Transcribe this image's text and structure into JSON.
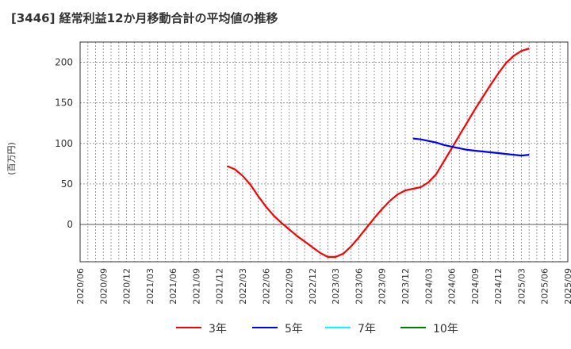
{
  "chart_data": {
    "type": "line",
    "title": "[3446]  経常利益12か月移動合計の平均値の推移",
    "ylabel": "(百万円)",
    "xlabel": "",
    "ylim": [
      -46,
      225
    ],
    "yticks": [
      0,
      50,
      100,
      150,
      200
    ],
    "xticks": [
      "2020/06",
      "2020/09",
      "2020/12",
      "2021/03",
      "2021/06",
      "2021/09",
      "2021/12",
      "2022/03",
      "2022/06",
      "2022/09",
      "2022/12",
      "2023/03",
      "2023/06",
      "2023/09",
      "2023/12",
      "2024/03",
      "2024/06",
      "2024/09",
      "2024/12",
      "2025/03",
      "2025/06",
      "2025/09"
    ],
    "grid": true,
    "legend_position": "bottom",
    "series": [
      {
        "name": "3年",
        "color": "#ff0000",
        "start": "2022/01",
        "values": [
          72,
          68,
          60,
          49,
          35,
          22,
          11,
          2,
          -6,
          -14,
          -21,
          -28,
          -35,
          -40,
          -40,
          -36,
          -27,
          -16,
          -4,
          8,
          19,
          29,
          37,
          42,
          44,
          46,
          52,
          62,
          78,
          94,
          110,
          126,
          142,
          157,
          172,
          186,
          199,
          208,
          214,
          217
        ]
      },
      {
        "name": "5年",
        "color": "#0000ff",
        "start": "2024/01",
        "values": [
          106,
          105,
          103,
          101,
          98,
          96,
          94,
          92,
          91,
          90,
          89,
          88,
          87,
          86,
          85,
          86
        ]
      },
      {
        "name": "7年",
        "color": "#00ffff",
        "start": "2024/01",
        "values": []
      },
      {
        "name": "10年",
        "color": "#008000",
        "start": "2024/01",
        "values": []
      }
    ]
  }
}
